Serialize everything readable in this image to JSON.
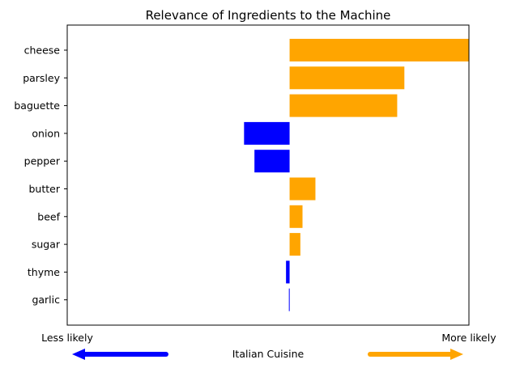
{
  "chart_data": {
    "type": "bar",
    "orientation": "horizontal",
    "title": "Relevance of Ingredients to the Machine",
    "xlabel": "Italian Cuisine",
    "x_left_label": "Less likely",
    "x_right_label": "More likely",
    "categories": [
      "cheese",
      "parsley",
      "baguette",
      "onion",
      "pepper",
      "butter",
      "beef",
      "sugar",
      "thyme",
      "garlic"
    ],
    "values": [
      0.5,
      0.32,
      0.3,
      -0.127,
      -0.098,
      0.072,
      0.036,
      0.03,
      -0.01,
      -0.002
    ],
    "xlim": [
      -0.62,
      0.5
    ],
    "grid": false,
    "colors": {
      "positive": "#FFA500",
      "negative": "#0000FF"
    }
  }
}
